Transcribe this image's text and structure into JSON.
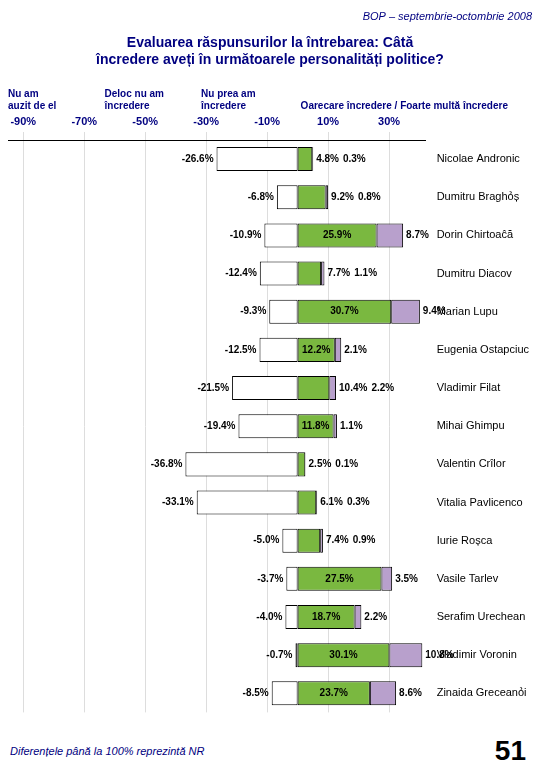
{
  "chart_data": {
    "type": "bar",
    "orientation": "horizontal",
    "stacked": true,
    "grid": true,
    "data_labels": true,
    "title": [
      "Evaluarea răspunsurilor la întrebarea: Câtă",
      "încredere aveți în următoarele personalități politice?"
    ],
    "subtitle": "BOP – septembrie-octombrie 2008",
    "annotations": [
      "Nu am\nauzit de el",
      "Deloc nu am\nîncredere",
      "Nu prea am\nîncredere",
      "Oarecare încredere / Foarte multă încredere"
    ],
    "footnote": "Diferențele până la 100% reprezintă NR",
    "page_number": "51",
    "categories": [
      "Nicolae Andronic",
      "Dumitru Braghỏș",
      "Dorin Chirtoaĉă",
      "Dumitru Diacov",
      "Marian Lupu",
      "Eugenia Ostapciuc",
      "Vladimir Filat",
      "Mihai Ghimpu",
      "Valentin Crîlor",
      "Vitalia Pavlicenco",
      "Iurie Roșca",
      "Vasile Tarlev",
      "Serafim Urechean",
      "Vladimir Voronin",
      "Zinaida Greceanỏi"
    ],
    "series": [
      {
        "color": "#ffffff",
        "values": [
          null,
          null,
          null,
          -12.4,
          null,
          -12.5,
          null,
          null,
          null,
          null,
          -5.0,
          null,
          -4.0,
          null,
          null
        ],
        "value_labels": [
          null,
          null,
          null,
          "-12.4%",
          null,
          "-12.5%",
          null,
          null,
          null,
          null,
          "-5.0%",
          null,
          "-4.0%",
          null,
          null
        ]
      },
      {
        "color": "#ffffff",
        "values": [
          -26.6,
          -6.8,
          -10.9,
          null,
          -9.3,
          null,
          -21.5,
          -19.4,
          -36.8,
          -33.1,
          null,
          -3.7,
          null,
          -0.7,
          -8.5
        ],
        "value_labels": [
          "-26.6%",
          "-6.8%",
          "-10.9%",
          null,
          "-9.3%",
          null,
          "-21.5%",
          "-19.4%",
          "-36.8%",
          "-33.1%",
          null,
          "-3.7%",
          null,
          "-0.7%",
          "-8.5%"
        ]
      },
      {
        "color": "#7ab840",
        "values": [
          4.8,
          9.2,
          25.9,
          7.7,
          30.7,
          12.2,
          10.4,
          11.8,
          2.5,
          6.1,
          7.4,
          27.5,
          18.7,
          30.1,
          23.7
        ],
        "value_labels": [
          "4.8%",
          "9.2%",
          "25.9%",
          "7.7%",
          "30.7%",
          "12.2%",
          "10.4%",
          "11.8%",
          "2.5%",
          "6.1%",
          "7.4%",
          "27.5%",
          "18.7%",
          "30.1%",
          "23.7%"
        ]
      },
      {
        "color": "#b8a0cc",
        "values": [
          0.3,
          0.8,
          8.7,
          1.1,
          9.4,
          2.1,
          2.2,
          1.1,
          0.1,
          0.3,
          0.9,
          3.5,
          2.2,
          10.8,
          8.6
        ],
        "value_labels": [
          "0.3%",
          "0.8%",
          "8.7%",
          "1.1%",
          "9.4%",
          "2.1%",
          "2.2%",
          "1.1%",
          "0.1%",
          "0.3%",
          "0.9%",
          "3.5%",
          "2.2%",
          "10.8%",
          "8.6%"
        ]
      }
    ],
    "xlim": [
      -95,
      42
    ],
    "xticks": [
      {
        "value": -90,
        "label": "-90%"
      },
      {
        "value": -70,
        "label": "-70%"
      },
      {
        "value": -50,
        "label": "-50%"
      },
      {
        "value": -30,
        "label": "-30%"
      },
      {
        "value": -10,
        "label": "-10%"
      },
      {
        "value": 10,
        "label": "10%"
      },
      {
        "value": 30,
        "label": "30%"
      }
    ]
  }
}
